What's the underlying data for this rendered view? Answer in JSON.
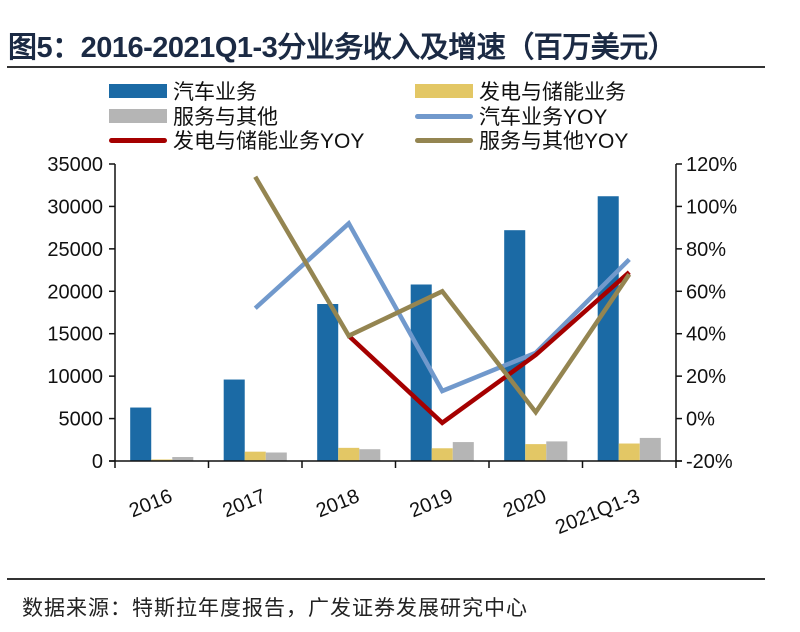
{
  "title": "图5：2016-2021Q1-3分业务收入及增速（百万美元）",
  "source": "数据来源：特斯拉年度报告，广发证券发展研究中心",
  "chart_data": {
    "type": "bar+line",
    "title": "图5：2016-2021Q1-3分业务收入及增速（百万美元）",
    "categories": [
      "2016",
      "2017",
      "2018",
      "2019",
      "2020",
      "2021Q1-3"
    ],
    "left_axis": {
      "ylim": [
        0,
        35000
      ],
      "ticks": [
        "0",
        "5000",
        "10000",
        "15000",
        "20000",
        "25000",
        "30000",
        "35000"
      ]
    },
    "right_axis": {
      "ylim": [
        -20,
        120
      ],
      "unit": "%",
      "ticks": [
        "-20%",
        "0%",
        "20%",
        "40%",
        "60%",
        "80%",
        "100%",
        "120%"
      ]
    },
    "grid": false,
    "legend_position": "top",
    "bar_series": [
      {
        "name": "汽车业务",
        "color": "#1b6aa5",
        "values": [
          6300,
          9600,
          18500,
          20800,
          27200,
          31200
        ]
      },
      {
        "name": "发电与储能业务",
        "color": "#e3c765",
        "values": [
          180,
          1100,
          1550,
          1500,
          1990,
          2060
        ]
      },
      {
        "name": "服务与其他",
        "color": "#b5b5b5",
        "values": [
          470,
          1000,
          1390,
          2230,
          2310,
          2720
        ]
      }
    ],
    "line_series": [
      {
        "name": "汽车业务YOY",
        "color": "#7199cc",
        "values": [
          null,
          52,
          92,
          13,
          31,
          75
        ]
      },
      {
        "name": "发电与储能业务YOY",
        "color": "#a50000",
        "values": [
          null,
          null,
          39,
          -2,
          30,
          69
        ]
      },
      {
        "name": "服务与其他YOY",
        "color": "#948551",
        "values": [
          null,
          114,
          39,
          60,
          3,
          68
        ]
      }
    ]
  }
}
